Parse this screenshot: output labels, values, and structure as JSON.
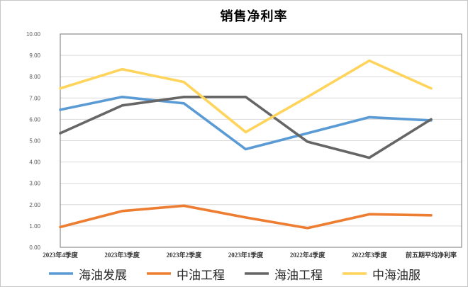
{
  "chart_data": {
    "type": "line",
    "title": "销售净利率",
    "categories": [
      "2023年4季度",
      "2023年3季度",
      "2023年2季度",
      "2023年1季度",
      "2022年4季度",
      "2022年3季度",
      "前五期平均净利率"
    ],
    "series": [
      {
        "name": "海油发展",
        "color": "#5B9BD5",
        "values": [
          6.45,
          7.05,
          6.75,
          4.6,
          5.35,
          6.1,
          5.95
        ]
      },
      {
        "name": "中油工程",
        "color": "#ED7D31",
        "values": [
          0.95,
          1.7,
          1.95,
          1.4,
          0.9,
          1.55,
          1.5
        ]
      },
      {
        "name": "海油工程",
        "color": "#666666",
        "values": [
          5.35,
          6.65,
          7.05,
          7.05,
          4.95,
          4.2,
          6.0
        ]
      },
      {
        "name": "中海油服",
        "color": "#FFD45B",
        "values": [
          7.45,
          8.35,
          7.75,
          5.4,
          7.05,
          8.75,
          7.45
        ]
      }
    ],
    "ylim": [
      0,
      10
    ],
    "y_ticks": [
      "10.00",
      "9.00",
      "8.00",
      "7.00",
      "6.00",
      "5.00",
      "4.00",
      "3.00",
      "2.00",
      "1.00",
      "0.00"
    ],
    "grid": true,
    "legend_position": "bottom",
    "colors": {
      "gridline": "#d9d9d9",
      "plot_border": "#8c8c8c",
      "background": "#ffffff"
    }
  }
}
